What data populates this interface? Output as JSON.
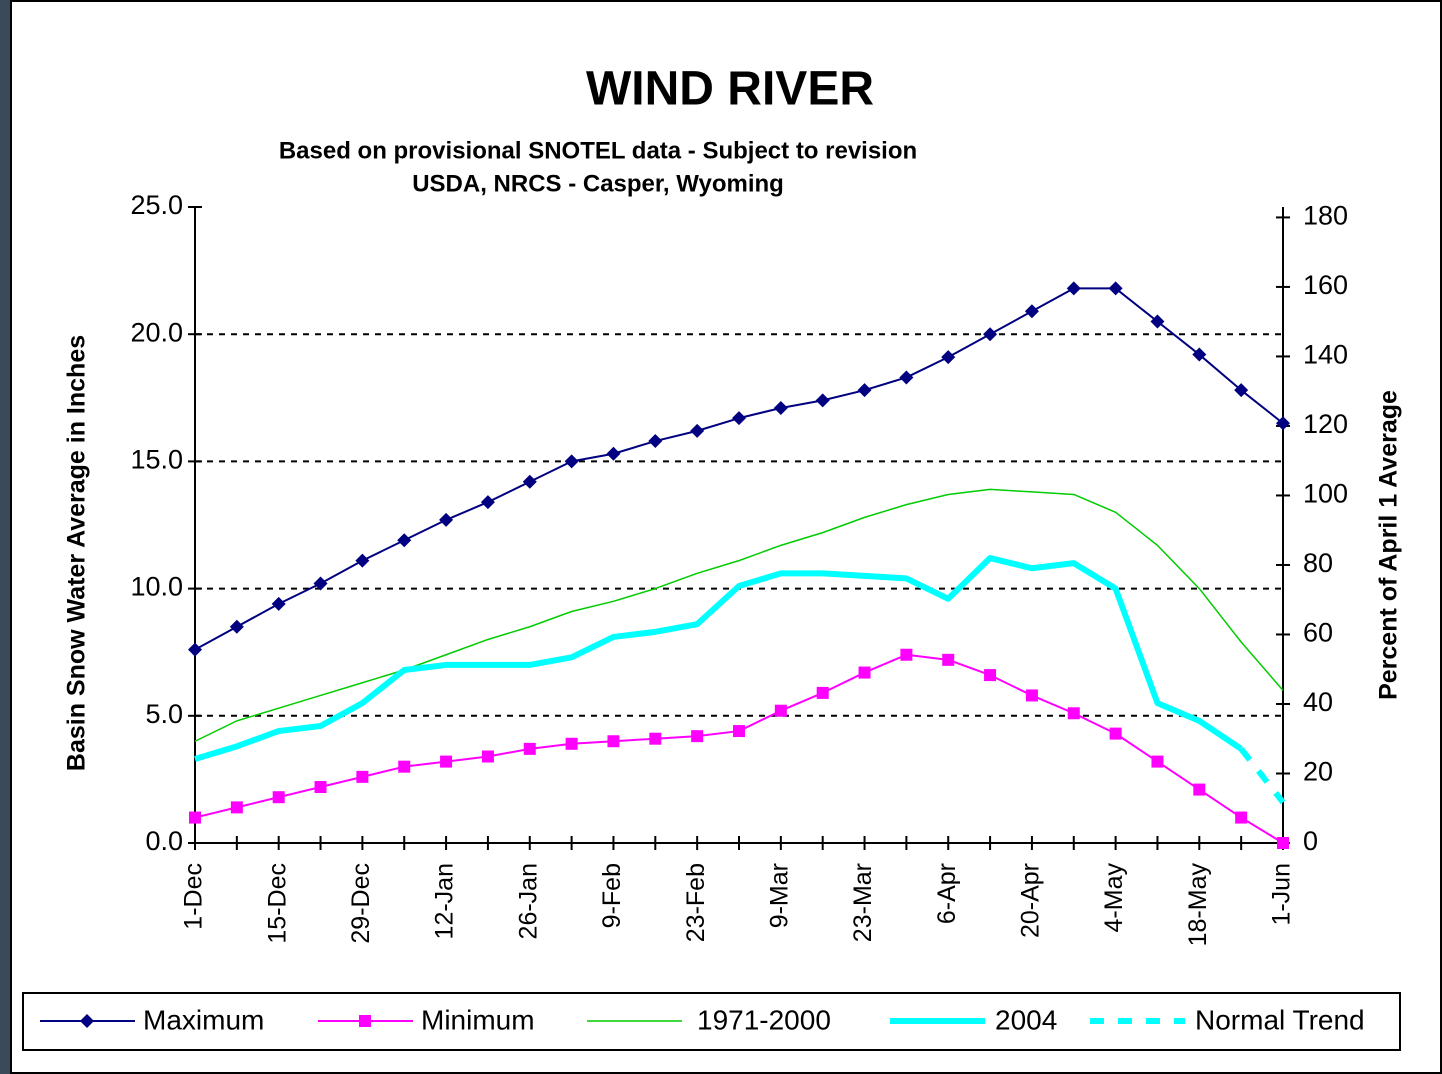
{
  "chart_data": {
    "type": "line",
    "title": "WIND RIVER",
    "subtitle": [
      "Based on provisional SNOTEL data - Subject to revision",
      "USDA, NRCS - Casper, Wyoming"
    ],
    "y_label": "Basin Snow Water Average in Inches",
    "y2_label": "Percent of April 1 Average",
    "categories": [
      "1-Dec",
      null,
      "15-Dec",
      null,
      "29-Dec",
      null,
      "12-Jan",
      null,
      "26-Jan",
      null,
      "9-Feb",
      null,
      "23-Feb",
      null,
      "9-Mar",
      null,
      "23-Mar",
      null,
      "6-Apr",
      null,
      "20-Apr",
      null,
      "4-May",
      null,
      "18-May",
      null,
      "1-Jun"
    ],
    "ylim": [
      0,
      25
    ],
    "yticks": [
      {
        "value": 0,
        "label": "0.0"
      },
      {
        "value": 5,
        "label": "5.0"
      },
      {
        "value": 10,
        "label": "10.0"
      },
      {
        "value": 15,
        "label": "15.0"
      },
      {
        "value": 20,
        "label": "20.0"
      },
      {
        "value": 25,
        "label": "25.0"
      }
    ],
    "y2lim": [
      0,
      183
    ],
    "y2ticks": [
      0,
      20,
      40,
      60,
      80,
      100,
      120,
      140,
      160,
      180
    ],
    "grid": true,
    "legend": "bottom",
    "series": [
      {
        "name": "Maximum",
        "color": "#000080",
        "marker": "diamond",
        "width": 2,
        "values": [
          7.6,
          8.5,
          9.4,
          10.2,
          11.1,
          11.9,
          12.7,
          13.4,
          14.2,
          15.0,
          15.3,
          15.8,
          16.2,
          16.7,
          17.1,
          17.4,
          17.8,
          18.3,
          19.1,
          20.0,
          20.9,
          21.8,
          21.8,
          20.5,
          19.2,
          17.8,
          16.5
        ]
      },
      {
        "name": "Minimum",
        "color": "#ff00ff",
        "marker": "square",
        "width": 2,
        "values": [
          1.0,
          1.4,
          1.8,
          2.2,
          2.6,
          3.0,
          3.2,
          3.4,
          3.7,
          3.9,
          4.0,
          4.1,
          4.2,
          4.4,
          5.2,
          5.9,
          6.7,
          7.4,
          7.2,
          6.6,
          5.8,
          5.1,
          4.3,
          3.2,
          2.1,
          1.0,
          0.0
        ]
      },
      {
        "name": "1971-2000",
        "color": "#00cc00",
        "width": 1.5,
        "values": [
          4.0,
          4.8,
          5.3,
          5.8,
          6.3,
          6.8,
          7.4,
          8.0,
          8.5,
          9.1,
          9.5,
          10.0,
          10.6,
          11.1,
          11.7,
          12.2,
          12.8,
          13.3,
          13.7,
          13.9,
          13.8,
          13.7,
          13.0,
          11.7,
          10.0,
          7.9,
          6.0
        ]
      },
      {
        "name": "2004",
        "color": "#00ffff",
        "width": 6,
        "values": [
          3.3,
          3.8,
          4.4,
          4.6,
          5.5,
          6.8,
          7.0,
          7.0,
          7.0,
          7.3,
          8.1,
          8.3,
          8.6,
          10.1,
          10.6,
          10.6,
          10.5,
          10.4,
          9.6,
          11.2,
          10.8,
          11.0,
          10.0,
          5.5,
          4.8,
          3.7,
          null
        ]
      },
      {
        "name": "Normal Trend",
        "color": "#00ffff",
        "width": 6,
        "dashed": true,
        "values": [
          null,
          null,
          null,
          null,
          null,
          null,
          null,
          null,
          null,
          null,
          null,
          null,
          null,
          null,
          null,
          null,
          null,
          null,
          null,
          null,
          null,
          null,
          null,
          null,
          null,
          3.7,
          1.6
        ]
      }
    ]
  }
}
